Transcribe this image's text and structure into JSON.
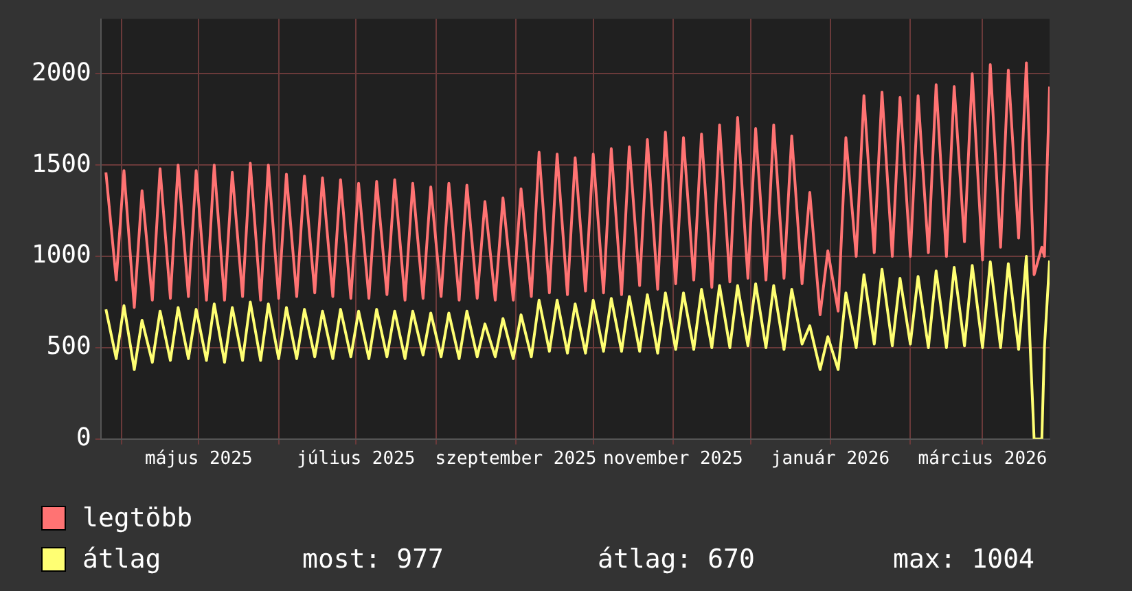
{
  "chart_data": {
    "type": "line",
    "grid": true,
    "legend": "bottom",
    "marker": "none",
    "line_style": "solid",
    "xlim": [
      "2025-03-24",
      "2026-03-27"
    ],
    "xticks": [
      {
        "value": "2025-04-01",
        "label": null
      },
      {
        "value": "2025-05-01",
        "label": "május 2025"
      },
      {
        "value": "2025-06-01",
        "label": null
      },
      {
        "value": "2025-07-01",
        "label": "július 2025"
      },
      {
        "value": "2025-08-01",
        "label": null
      },
      {
        "value": "2025-09-01",
        "label": "szeptember 2025"
      },
      {
        "value": "2025-10-01",
        "label": null
      },
      {
        "value": "2025-11-01",
        "label": "november 2025"
      },
      {
        "value": "2025-12-01",
        "label": null
      },
      {
        "value": "2026-01-01",
        "label": "január 2026"
      },
      {
        "value": "2026-02-01",
        "label": null
      },
      {
        "value": "2026-03-01",
        "label": "március 2026"
      }
    ],
    "ylim": [
      0,
      2300
    ],
    "yticks": [
      0,
      500,
      1000,
      1500,
      2000
    ],
    "x": [
      "2025-03-26",
      "2025-03-30",
      "2025-04-02",
      "2025-04-06",
      "2025-04-09",
      "2025-04-13",
      "2025-04-16",
      "2025-04-20",
      "2025-04-23",
      "2025-04-27",
      "2025-04-30",
      "2025-05-04",
      "2025-05-07",
      "2025-05-11",
      "2025-05-14",
      "2025-05-18",
      "2025-05-21",
      "2025-05-25",
      "2025-05-28",
      "2025-06-01",
      "2025-06-04",
      "2025-06-08",
      "2025-06-11",
      "2025-06-15",
      "2025-06-18",
      "2025-06-22",
      "2025-06-25",
      "2025-06-29",
      "2025-07-02",
      "2025-07-06",
      "2025-07-09",
      "2025-07-13",
      "2025-07-16",
      "2025-07-20",
      "2025-07-23",
      "2025-07-27",
      "2025-07-30",
      "2025-08-03",
      "2025-08-06",
      "2025-08-10",
      "2025-08-13",
      "2025-08-17",
      "2025-08-20",
      "2025-08-24",
      "2025-08-27",
      "2025-08-31",
      "2025-09-03",
      "2025-09-07",
      "2025-09-10",
      "2025-09-14",
      "2025-09-17",
      "2025-09-21",
      "2025-09-24",
      "2025-09-28",
      "2025-10-01",
      "2025-10-05",
      "2025-10-08",
      "2025-10-12",
      "2025-10-15",
      "2025-10-19",
      "2025-10-22",
      "2025-10-26",
      "2025-10-29",
      "2025-11-02",
      "2025-11-05",
      "2025-11-09",
      "2025-11-12",
      "2025-11-16",
      "2025-11-19",
      "2025-11-23",
      "2025-11-26",
      "2025-11-30",
      "2025-12-03",
      "2025-12-07",
      "2025-12-10",
      "2025-12-14",
      "2025-12-17",
      "2025-12-21",
      "2025-12-24",
      "2025-12-28",
      "2025-12-31",
      "2026-01-04",
      "2026-01-07",
      "2026-01-11",
      "2026-01-14",
      "2026-01-18",
      "2026-01-21",
      "2026-01-25",
      "2026-01-28",
      "2026-02-01",
      "2026-02-04",
      "2026-02-08",
      "2026-02-11",
      "2026-02-15",
      "2026-02-18",
      "2026-02-22",
      "2026-02-25",
      "2026-03-01",
      "2026-03-04",
      "2026-03-08",
      "2026-03-11",
      "2026-03-15",
      "2026-03-18",
      "2026-03-21",
      "2026-03-24",
      "2026-03-25",
      "2026-03-27"
    ],
    "series": [
      {
        "name": "legtöbb",
        "color": "#ff7373",
        "values": [
          1460,
          870,
          1470,
          720,
          1360,
          760,
          1480,
          770,
          1500,
          780,
          1470,
          760,
          1500,
          760,
          1460,
          780,
          1510,
          760,
          1500,
          770,
          1450,
          780,
          1440,
          800,
          1430,
          780,
          1420,
          770,
          1400,
          770,
          1410,
          790,
          1420,
          760,
          1400,
          770,
          1380,
          780,
          1400,
          760,
          1390,
          770,
          1300,
          760,
          1320,
          760,
          1370,
          780,
          1570,
          800,
          1560,
          790,
          1540,
          810,
          1560,
          800,
          1590,
          790,
          1600,
          840,
          1640,
          820,
          1680,
          850,
          1650,
          870,
          1670,
          830,
          1720,
          860,
          1760,
          880,
          1700,
          870,
          1720,
          880,
          1660,
          850,
          1350,
          680,
          1030,
          700,
          1650,
          1000,
          1880,
          1020,
          1900,
          1000,
          1870,
          1000,
          1880,
          1020,
          1940,
          1000,
          1930,
          1080,
          2000,
          980,
          2050,
          1050,
          2020,
          1100,
          2060,
          900,
          1050,
          1000,
          1930
        ]
      },
      {
        "name": "átlag",
        "color": "#ffff73",
        "values": [
          710,
          440,
          730,
          380,
          650,
          420,
          700,
          430,
          720,
          440,
          710,
          430,
          740,
          420,
          720,
          430,
          750,
          430,
          740,
          440,
          720,
          440,
          710,
          450,
          700,
          440,
          710,
          450,
          700,
          440,
          710,
          450,
          700,
          440,
          700,
          460,
          690,
          450,
          690,
          440,
          700,
          450,
          630,
          450,
          660,
          440,
          680,
          450,
          760,
          480,
          760,
          470,
          740,
          470,
          760,
          480,
          770,
          480,
          780,
          480,
          790,
          470,
          800,
          490,
          800,
          490,
          820,
          500,
          840,
          500,
          840,
          510,
          850,
          500,
          840,
          490,
          820,
          520,
          620,
          380,
          560,
          380,
          800,
          500,
          900,
          520,
          930,
          510,
          880,
          520,
          890,
          500,
          920,
          500,
          940,
          510,
          950,
          500,
          970,
          500,
          960,
          490,
          1000,
          0,
          0,
          500,
          977
        ]
      }
    ],
    "annotations": [
      "most: 977",
      "átlag: 670",
      "max: 1004"
    ]
  }
}
